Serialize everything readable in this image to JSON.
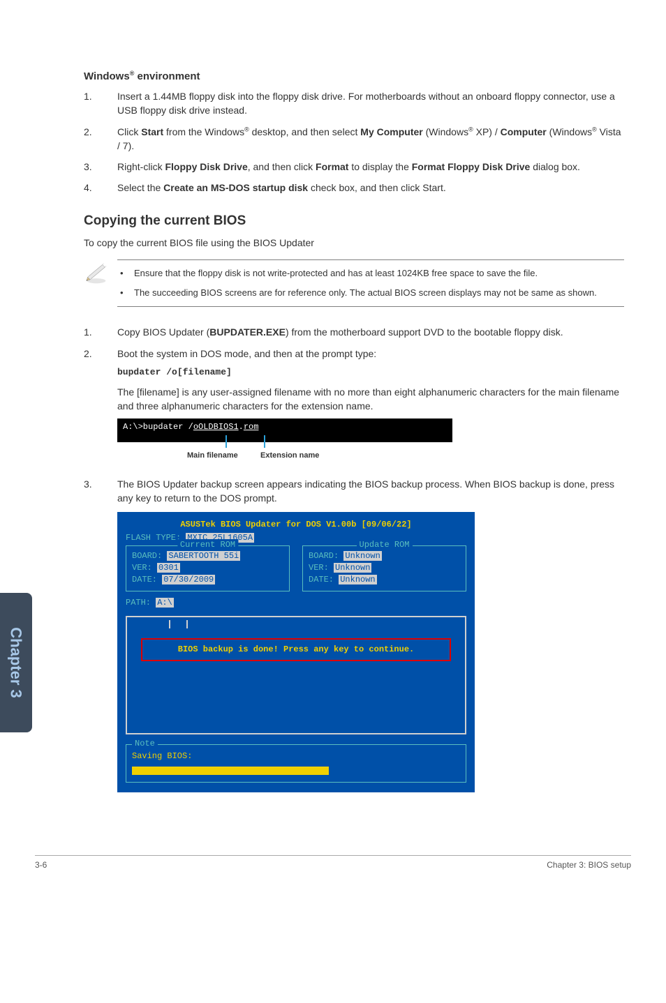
{
  "section1": {
    "title": "Windows® environment",
    "items": [
      "Insert a 1.44MB floppy disk into the floppy disk drive. For motherboards without an onboard floppy connector, use a USB floppy disk drive instead.",
      "Click <b>Start</b> from the Windows<span class=\"sup\">®</span> desktop, and then select <b>My Computer</b> (Windows<span class=\"sup\">®</span> XP) / <b>Computer</b> (Windows<span class=\"sup\">®</span> Vista / 7).",
      "Right-click <b>Floppy Disk Drive</b>, and then click <b>Format</b> to display the <b>Format Floppy Disk Drive</b> dialog box.",
      "Select the <b>Create an MS-DOS startup disk</b> check box, and then click Start."
    ]
  },
  "section2": {
    "title": "Copying the current BIOS",
    "intro": "To copy the current BIOS file using the BIOS Updater",
    "notes": [
      "Ensure that the floppy disk is not write-protected and has at least 1024KB free space to save the file.",
      "The succeeding BIOS screens are for reference only. The actual BIOS screen displays may not be same as shown."
    ],
    "items": [
      "Copy BIOS Updater (<b>BUPDATER.EXE</b>) from the motherboard support DVD to the bootable floppy disk.",
      "Boot the system in DOS mode, and then at the prompt type:",
      "The BIOS Updater backup screen appears indicating the BIOS backup process. When BIOS backup is done, press any key to return to the DOS prompt."
    ],
    "codeCmd": "bupdater /o[filename]",
    "codeNote": "The [filename] is any user-assigned filename with no more than eight alphanumeric characters for the main filename and three alphanumeric characters for the extension name."
  },
  "terminal": {
    "line": "A:\\>bupdater /oOLDBIOS1.rom",
    "label_main": "Main filename",
    "label_ext": "Extension name"
  },
  "bios": {
    "title": "ASUSTek BIOS Updater for DOS V1.00b [09/06/22]",
    "flash_label": "FLASH TYPE: ",
    "flash_value": "MXIC 25L1605A",
    "current": {
      "title": "Current ROM",
      "board_label": "BOARD: ",
      "board_value": "SABERTOOTH 55i",
      "ver_label": "VER: ",
      "ver_value": "0301",
      "date_label": "DATE: ",
      "date_value": "07/30/2009"
    },
    "update": {
      "title": "Update ROM",
      "board_label": "BOARD: ",
      "board_value": "Unknown",
      "ver_label": "VER: ",
      "ver_value": "Unknown",
      "date_label": "DATE: ",
      "date_value": "Unknown"
    },
    "path_label": "PATH: ",
    "path_value": "A:\\",
    "banner": "BIOS backup is done! Press any key to continue.",
    "note_title": "Note",
    "saving": "Saving BIOS:"
  },
  "sidetab": "Chapter 3",
  "footer": {
    "left": "3-6",
    "right": "Chapter 3: BIOS setup"
  }
}
